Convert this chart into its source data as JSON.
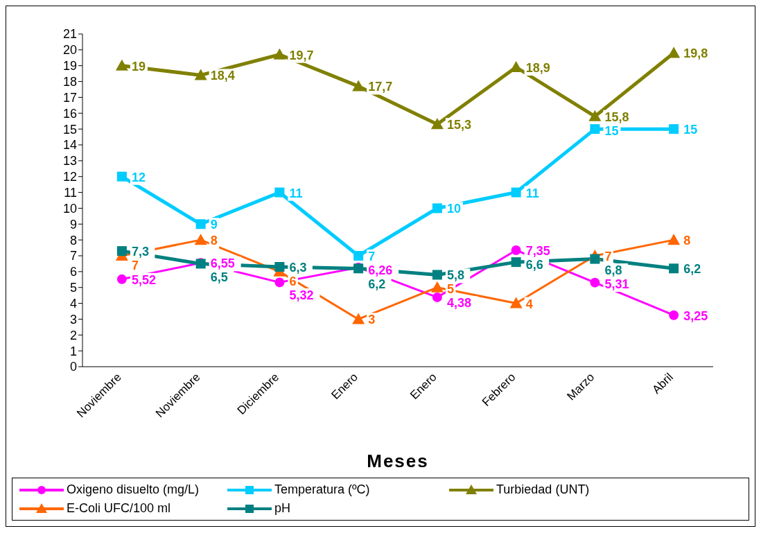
{
  "chart_data": {
    "type": "line",
    "xlabel": "Meses",
    "categories": [
      "Noviembre",
      "Noviembre",
      "Diciembre",
      "Enero",
      "Enero",
      "Febrero",
      "Marzo",
      "Abril"
    ],
    "series": [
      {
        "name": "Oxigeno disuelto (mg/L)",
        "color": "#ff00ff",
        "marker": "circle",
        "values": [
          5.52,
          6.55,
          5.32,
          6.26,
          4.38,
          7.35,
          5.31,
          3.25
        ],
        "value_labels": [
          "5,52",
          "6,55",
          "5,32",
          "6,26",
          "4,38",
          "7,35",
          "5,31",
          "3,25"
        ]
      },
      {
        "name": "Temperatura (ºC)",
        "color": "#00ccff",
        "marker": "square",
        "values": [
          12,
          9,
          11,
          7,
          10,
          11,
          15,
          15
        ],
        "value_labels": [
          "12",
          "9",
          "11",
          "7",
          "10",
          "11",
          "15",
          "15"
        ]
      },
      {
        "name": "Turbiedad (UNT)",
        "color": "#808000",
        "marker": "triangle",
        "values": [
          19,
          18.4,
          19.7,
          17.7,
          15.3,
          18.9,
          15.8,
          19.8
        ],
        "value_labels": [
          "19",
          "18,4",
          "19,7",
          "17,7",
          "15,3",
          "18,9",
          "15,8",
          "19,8"
        ]
      },
      {
        "name": "E-Coli UFC/100 ml",
        "color": "#ff6600",
        "marker": "triangle",
        "values": [
          7,
          8,
          6,
          3,
          5,
          4,
          7,
          8
        ],
        "value_labels": [
          "7",
          "8",
          "6",
          "3",
          "5",
          "4",
          "7",
          "8"
        ]
      },
      {
        "name": "pH",
        "color": "#008080",
        "marker": "square",
        "values": [
          7.3,
          6.5,
          6.3,
          6.2,
          5.8,
          6.6,
          6.8,
          6.2
        ],
        "value_labels": [
          "7,3",
          "6,5",
          "6,3",
          "6,2",
          "5,8",
          "6,6",
          "6,8",
          "6,2"
        ]
      }
    ],
    "ylim": [
      0,
      21
    ],
    "yticks": [
      0,
      1,
      2,
      3,
      4,
      5,
      6,
      7,
      8,
      9,
      10,
      11,
      12,
      13,
      14,
      15,
      16,
      17,
      18,
      19,
      20,
      21
    ],
    "grid": false,
    "legend": "bottom",
    "line_style": "solid"
  }
}
